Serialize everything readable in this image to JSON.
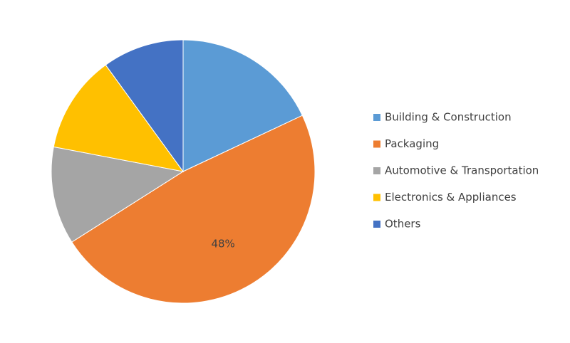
{
  "chart_data": {
    "type": "pie",
    "categories": [
      "Building & Construction",
      "Packaging",
      "Automotive & Transportation",
      "Electronics & Appliances",
      "Others"
    ],
    "values": [
      18,
      48,
      12,
      12,
      10
    ],
    "value_labels": [
      null,
      "48%",
      null,
      null,
      null
    ],
    "colors": [
      "#5b9bd5",
      "#ed7d31",
      "#a5a5a5",
      "#ffc000",
      "#4472c4"
    ],
    "legend": "right"
  }
}
